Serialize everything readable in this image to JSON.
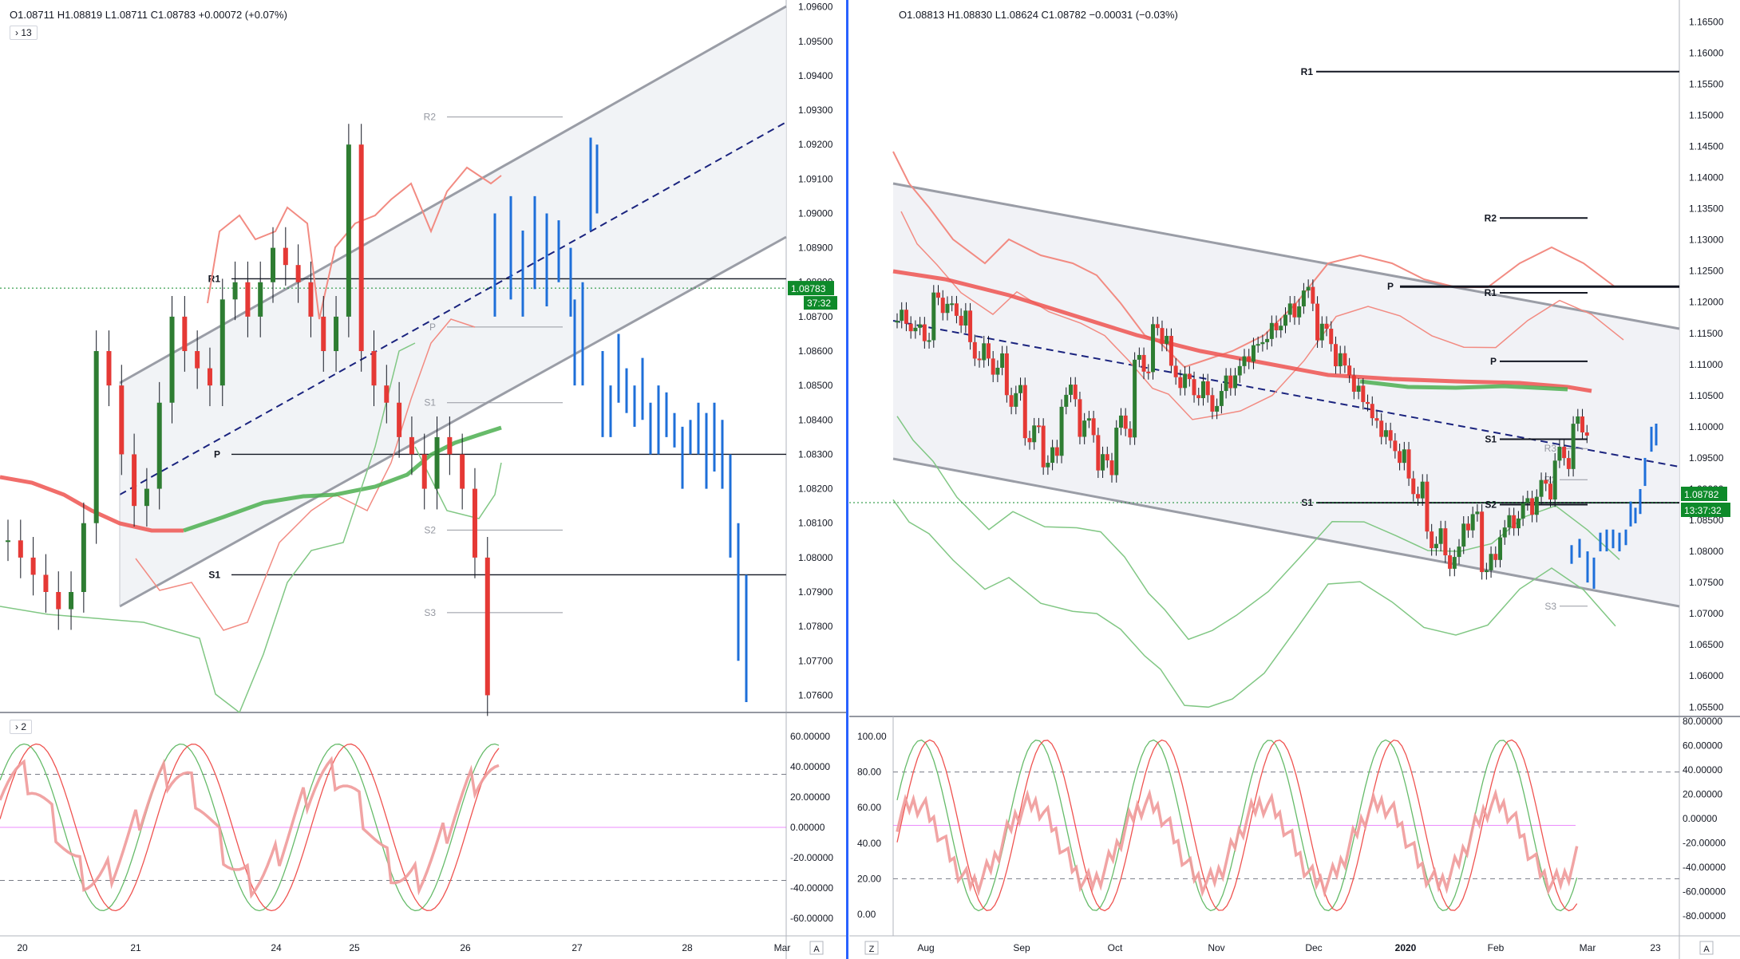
{
  "left": {
    "ohlc": "O1.08711  H1.08819  L1.08711  C1.08783  +0.00072 (+0.07%)",
    "badge_main": "› 13",
    "badge_osc": "› 2",
    "price_ticks": [
      "1.09600",
      "1.09500",
      "1.09400",
      "1.09300",
      "1.09200",
      "1.09100",
      "1.09000",
      "1.08900",
      "1.08800",
      "1.08700",
      "1.08600",
      "1.08500",
      "1.08400",
      "1.08300",
      "1.08200",
      "1.08100",
      "1.08000",
      "1.07900",
      "1.07800",
      "1.07700",
      "1.07600"
    ],
    "osc_ticks": [
      "60.00000",
      "40.00000",
      "20.00000",
      "0.00000",
      "-20.00000",
      "-40.00000",
      "-60.00000"
    ],
    "time_ticks": [
      "20",
      "21",
      "24",
      "25",
      "26",
      "27",
      "28",
      "Mar"
    ],
    "last_price": "1.08783",
    "countdown": "37:32",
    "corner": "A",
    "pivots": [
      "R2",
      "R1",
      "P",
      "S1",
      "S2",
      "S3",
      "P",
      "S1"
    ]
  },
  "right": {
    "ohlc": "O1.08813  H1.08830  L1.08624  C1.08782  −0.00031 (−0.03%)",
    "price_ticks": [
      "1.16500",
      "1.16000",
      "1.15500",
      "1.15000",
      "1.14500",
      "1.14000",
      "1.13500",
      "1.13000",
      "1.12500",
      "1.12000",
      "1.11500",
      "1.11000",
      "1.10500",
      "1.10000",
      "1.09500",
      "1.09000",
      "1.08500",
      "1.08000",
      "1.07500",
      "1.07000",
      "1.06500",
      "1.06000",
      "1.05500"
    ],
    "osc_left_ticks": [
      "100.00",
      "80.00",
      "60.00",
      "40.00",
      "20.00",
      "0.00"
    ],
    "osc_right_ticks": [
      "80.00000",
      "60.00000",
      "40.00000",
      "20.00000",
      "0.00000",
      "-20.00000",
      "-40.00000",
      "-60.00000",
      "-80.00000"
    ],
    "time_ticks": [
      "Aug",
      "Sep",
      "Oct",
      "Nov",
      "Dec",
      "2020",
      "Feb",
      "Mar",
      "23"
    ],
    "last_price": "1.08782",
    "countdown": "13:37:32",
    "corner_left": "Z",
    "corner_right": "A",
    "pivots": [
      "R1",
      "R2",
      "R1",
      "P",
      "P",
      "S1",
      "S1",
      "S2",
      "R3",
      "R2",
      "S3",
      "S3"
    ]
  },
  "chart_data": [
    {
      "type": "candlestick",
      "instrument_pane": "left (intraday)",
      "ylim": [
        1.0755,
        1.0962
      ],
      "x_categories": [
        "20",
        "21",
        "24",
        "25",
        "26",
        "27",
        "28",
        "Mar"
      ],
      "approx_close_path": [
        1.0805,
        1.08,
        1.0795,
        1.079,
        1.0785,
        1.079,
        1.081,
        1.086,
        1.085,
        1.083,
        1.0815,
        1.082,
        1.0845,
        1.087,
        1.086,
        1.0855,
        1.085,
        1.0875,
        1.088,
        1.087,
        1.088,
        1.089,
        1.0885,
        1.088,
        1.087,
        1.086,
        1.087,
        1.092,
        1.086,
        1.085,
        1.0845,
        1.0835,
        1.083,
        1.082,
        1.0835,
        1.083,
        1.082,
        1.08,
        1.076
      ],
      "levels": {
        "R2": 1.0928,
        "R1": 1.0881,
        "P": 1.083,
        "S1": 1.0795,
        "S2": 1.0808,
        "S3": 1.0784
      },
      "last_price": 1.08783
    },
    {
      "type": "candlestick",
      "instrument_pane": "right (daily)",
      "ylim": [
        1.0535,
        1.1685
      ],
      "x_categories": [
        "Aug",
        "Sep",
        "Oct",
        "Nov",
        "Dec",
        "2020",
        "Feb",
        "Mar",
        "23"
      ],
      "approx_close_path": [
        1.117,
        1.115,
        1.12,
        1.118,
        1.112,
        1.11,
        1.105,
        1.099,
        1.095,
        1.105,
        1.1,
        1.094,
        1.1,
        1.11,
        1.115,
        1.108,
        1.106,
        1.104,
        1.108,
        1.112,
        1.115,
        1.118,
        1.121,
        1.115,
        1.11,
        1.105,
        1.1,
        1.096,
        1.09,
        1.082,
        1.079,
        1.085,
        1.078,
        1.084,
        1.087,
        1.09,
        1.095,
        1.1
      ],
      "levels": {
        "R1": 1.157,
        "R2": 1.1335,
        "R1b": 1.1215,
        "P": 1.1105,
        "S1": 1.098,
        "S1b": 1.0878,
        "S2": 1.0878,
        "S3": 1.0715
      },
      "last_price": 1.08782
    }
  ]
}
